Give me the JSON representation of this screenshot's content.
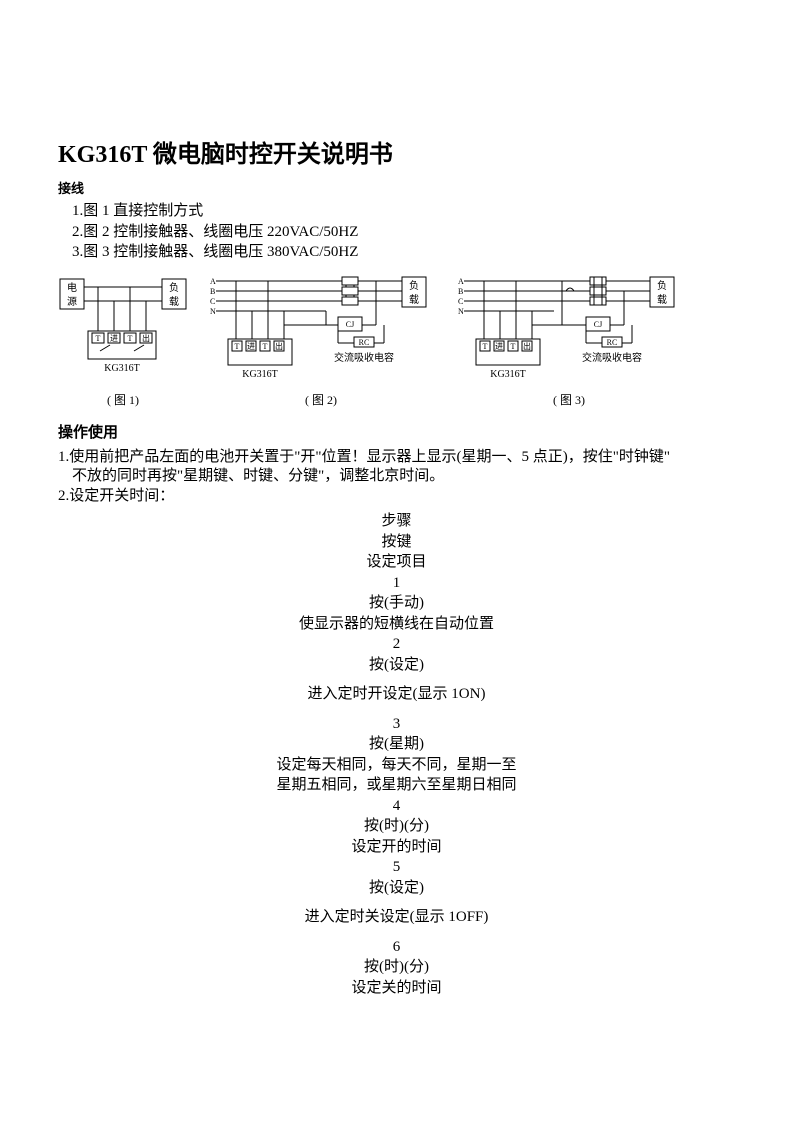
{
  "title": "KG316T 微电脑时控开关说明书",
  "wiring": {
    "label": "接线",
    "items": [
      "1.图 1 直接控制方式",
      "2.图 2 控制接触器、线圈电压 220VAC/50HZ",
      "3.图 3 控制接触器、线圈电压 380VAC/50HZ"
    ]
  },
  "diagrams": {
    "labels": {
      "power": "电",
      "power2": "源",
      "load": "负",
      "load2": "载",
      "device": "KG316T",
      "cj": "CJ",
      "rc": "RC",
      "rc_full": "交流吸收电容",
      "t_in": "T",
      "jin": "进",
      "chu": "出",
      "phaseA": "A",
      "phaseB": "B",
      "phaseC": "C",
      "phaseN": "N"
    },
    "captions": [
      "( 图 1)",
      "( 图 2)",
      "( 图 3)"
    ],
    "stroke": "#000000",
    "bg": "#ffffff"
  },
  "operation": {
    "label": "操作使用",
    "line1a": "1.使用前把产品左面的电池开关置于\"开\"位置！显示器上显示(星期一、5 点正)，按住\"时钟键\"",
    "line1b": "不放的同时再按\"星期键、时键、分键\"，调整北京时间。",
    "line2": "2.设定开关时间："
  },
  "steps": {
    "header1": "步骤",
    "header2": "按键",
    "header3": "设定项目",
    "rows": [
      {
        "n": "1",
        "key": "按(手动)",
        "desc": [
          "使显示器的短横线在自动位置"
        ]
      },
      {
        "n": "2",
        "key": "按(设定)",
        "desc": [
          "进入定时开设定(显示 1ON)"
        ],
        "gapBefore": true
      },
      {
        "n": "3",
        "key": "按(星期)",
        "desc": [
          "设定每天相同，每天不同，星期一至",
          "星期五相同，或星期六至星期日相同"
        ]
      },
      {
        "n": "4",
        "key": "按(时)(分)",
        "desc": [
          "设定开的时间"
        ]
      },
      {
        "n": "5",
        "key": "按(设定)",
        "desc": [
          "进入定时关设定(显示 1OFF)"
        ],
        "gapBefore": true
      },
      {
        "n": "6",
        "key": "按(时)(分)",
        "desc": [
          "设定关的时间"
        ]
      }
    ]
  }
}
